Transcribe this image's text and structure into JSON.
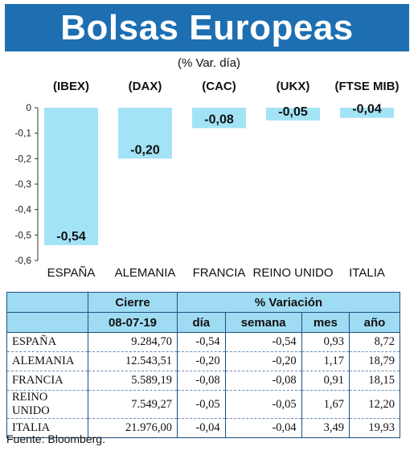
{
  "header": {
    "title": "Bolsas Europeas",
    "subtitle": "(% Var. día)"
  },
  "chart_data": {
    "type": "bar",
    "index_labels": [
      "(IBEX)",
      "(DAX)",
      "(CAC)",
      "(UKX)",
      "(FTSE MIB)"
    ],
    "categories": [
      "ESPAÑA",
      "ALEMANIA",
      "FRANCIA",
      "REINO UNIDO",
      "ITALIA"
    ],
    "values": [
      -0.54,
      -0.2,
      -0.08,
      -0.05,
      -0.04
    ],
    "value_labels": [
      "-0,54",
      "-0,20",
      "-0,08",
      "-0,05",
      "-0,04"
    ],
    "yticks": [
      "0",
      "-0,1",
      "-0,2",
      "-0,3",
      "-0,4",
      "-0,5",
      "-0,6"
    ],
    "ylim": [
      -0.6,
      0
    ],
    "bar_color": "#a3e3f6",
    "grid": false
  },
  "table": {
    "group_headers": [
      "Cierre",
      "% Variación"
    ],
    "sub_headers": [
      "08-07-19",
      "día",
      "semana",
      "mes",
      "año"
    ],
    "rows": [
      {
        "name": "ESPAÑA",
        "cierre": "9.284,70",
        "dia": "-0,54",
        "semana": "-0,54",
        "mes": "0,93",
        "ano": "8,72"
      },
      {
        "name": "ALEMANIA",
        "cierre": "12.543,51",
        "dia": "-0,20",
        "semana": "-0,20",
        "mes": "1,17",
        "ano": "18,79"
      },
      {
        "name": "FRANCIA",
        "cierre": "5.589,19",
        "dia": "-0,08",
        "semana": "-0,08",
        "mes": "0,91",
        "ano": "18,15"
      },
      {
        "name": "REINO UNIDO",
        "cierre": "7.549,27",
        "dia": "-0,05",
        "semana": "-0,05",
        "mes": "1,67",
        "ano": "12,20"
      },
      {
        "name": "ITALIA",
        "cierre": "21.976,00",
        "dia": "-0,04",
        "semana": "-0,04",
        "mes": "3,49",
        "ano": "19,93"
      }
    ]
  },
  "source": "Fuente: Bloomberg.",
  "colors": {
    "title_bg": "#1d6fb2",
    "header_bg": "#9fdcf3",
    "table_border": "#1b4f80"
  }
}
